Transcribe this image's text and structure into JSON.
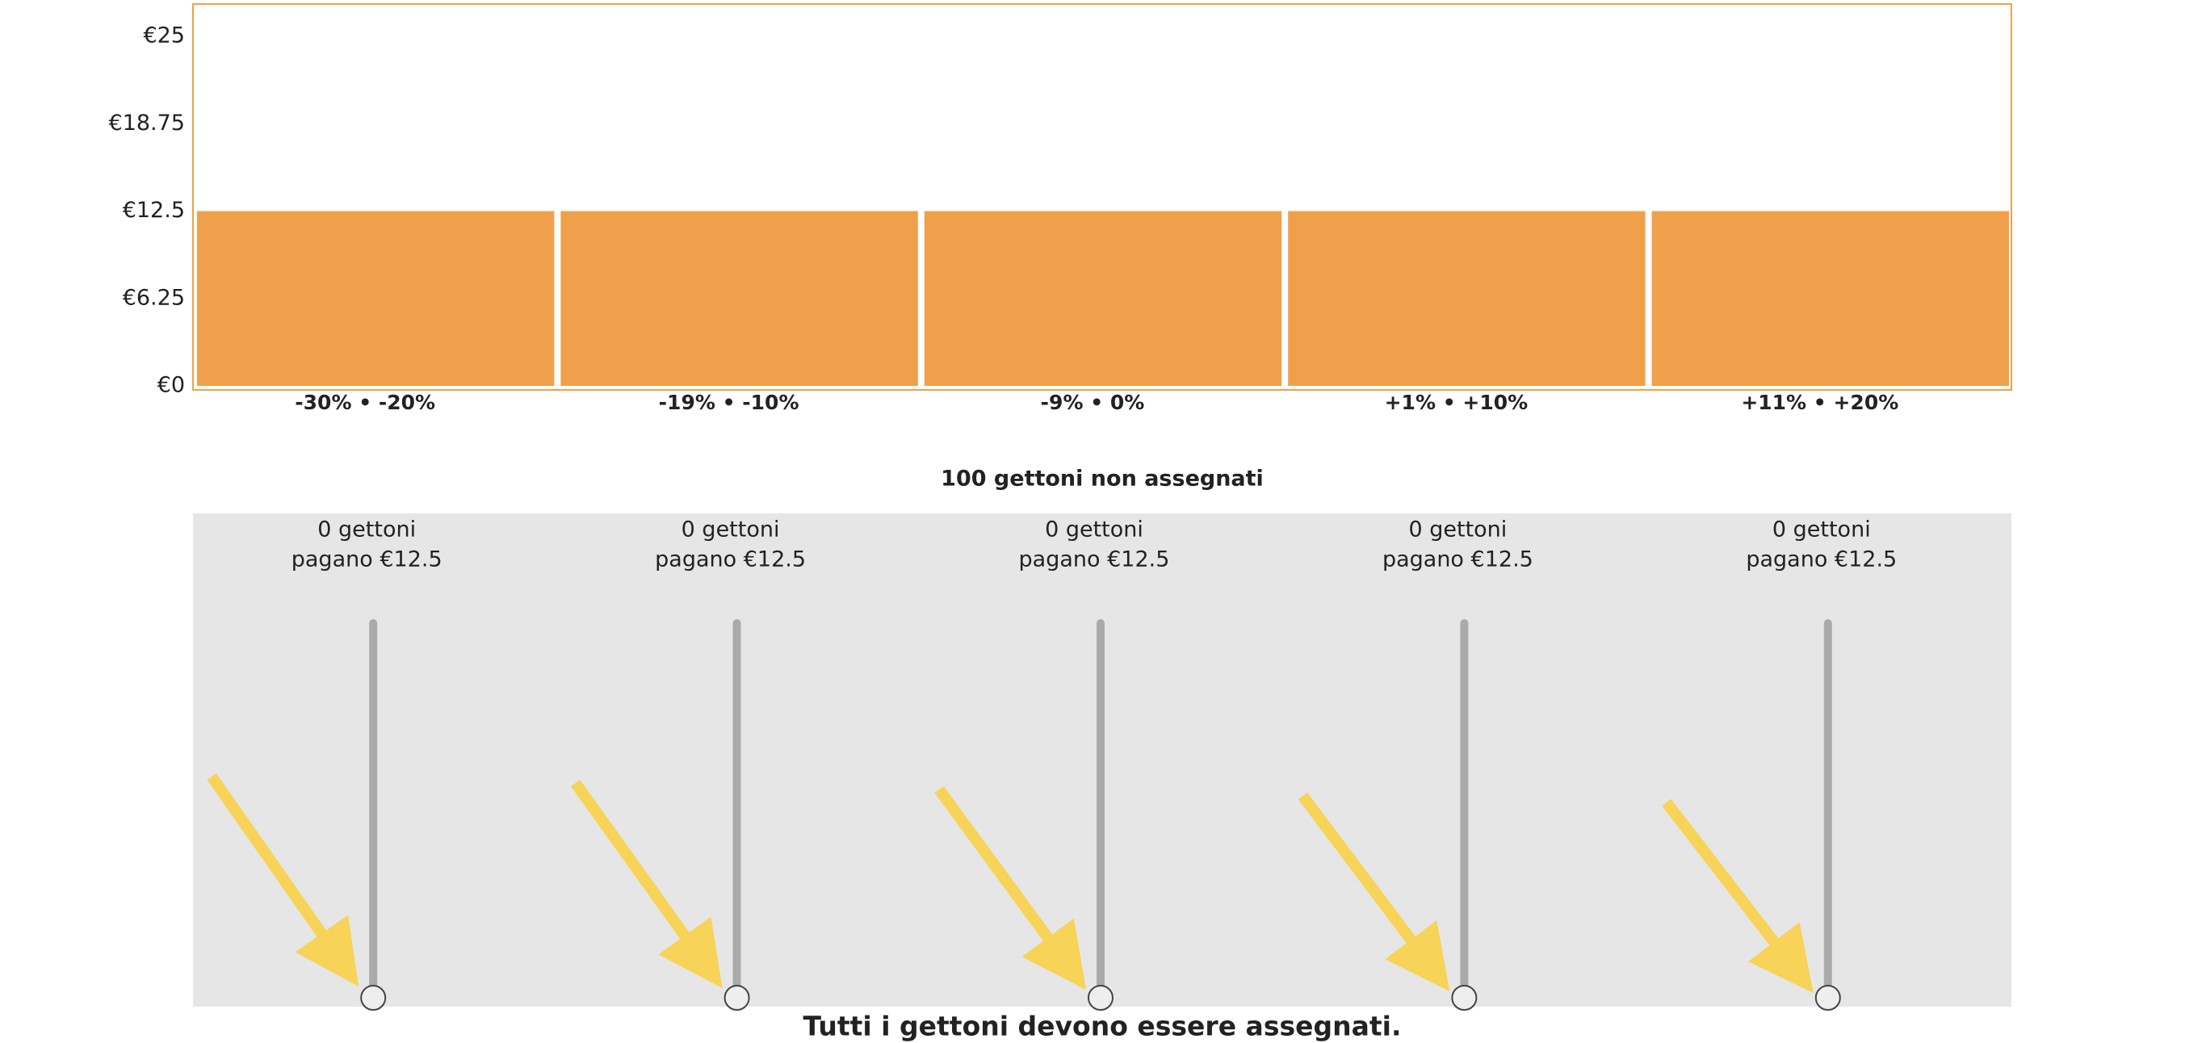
{
  "chart_data": {
    "type": "bar",
    "categories": [
      "-30% • -20%",
      "-19% • -10%",
      "-9% • 0%",
      "+1% • +10%",
      "+11% • +20%"
    ],
    "values": [
      12.5,
      12.5,
      12.5,
      12.5,
      12.5
    ],
    "color": "#f0a04b",
    "ylim": [
      0,
      25
    ],
    "yticks": [
      {
        "value": 0,
        "label": "€0"
      },
      {
        "value": 6.25,
        "label": "€6.25"
      },
      {
        "value": 12.5,
        "label": "€12.5"
      },
      {
        "value": 18.75,
        "label": "€18.75"
      },
      {
        "value": 25,
        "label": "€25"
      }
    ],
    "grid": false
  },
  "status": "100 gettoni non assegnati",
  "sliders": [
    {
      "tokens": "0 gettoni",
      "pays": "pagano €12.5"
    },
    {
      "tokens": "0 gettoni",
      "pays": "pagano €12.5"
    },
    {
      "tokens": "0 gettoni",
      "pays": "pagano €12.5"
    },
    {
      "tokens": "0 gettoni",
      "pays": "pagano €12.5"
    },
    {
      "tokens": "0 gettoni",
      "pays": "pagano €12.5"
    }
  ],
  "footer": "Tutti i gettoni devono essere assegnati."
}
